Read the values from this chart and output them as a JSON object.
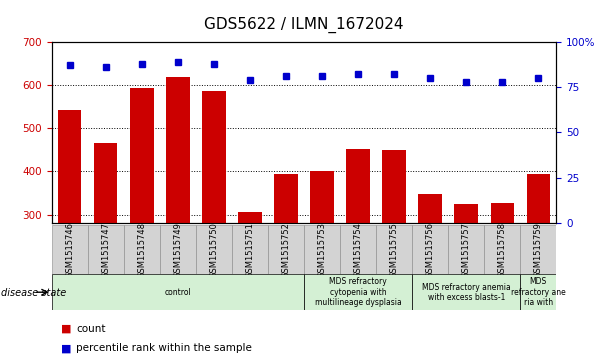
{
  "title": "GDS5622 / ILMN_1672024",
  "samples": [
    "GSM1515746",
    "GSM1515747",
    "GSM1515748",
    "GSM1515749",
    "GSM1515750",
    "GSM1515751",
    "GSM1515752",
    "GSM1515753",
    "GSM1515754",
    "GSM1515755",
    "GSM1515756",
    "GSM1515757",
    "GSM1515758",
    "GSM1515759"
  ],
  "counts": [
    543,
    466,
    592,
    618,
    585,
    307,
    393,
    400,
    452,
    450,
    348,
    325,
    328,
    393
  ],
  "percentiles": [
    87,
    86,
    88,
    89,
    88,
    79,
    81,
    81,
    82,
    82,
    80,
    78,
    78,
    80
  ],
  "ylim_left": [
    280,
    700
  ],
  "ylim_right": [
    0,
    100
  ],
  "yticks_left": [
    300,
    400,
    500,
    600,
    700
  ],
  "yticks_right": [
    0,
    25,
    50,
    75,
    100
  ],
  "bar_color": "#cc0000",
  "dot_color": "#0000cc",
  "background_color": "#ffffff",
  "grid_color": "#000000",
  "disease_groups": [
    {
      "label": "control",
      "start": 0,
      "end": 7,
      "color": "#d4f0d4"
    },
    {
      "label": "MDS refractory\ncytopenia with\nmultilineage dysplasia",
      "start": 7,
      "end": 10,
      "color": "#d4f0d4"
    },
    {
      "label": "MDS refractory anemia\nwith excess blasts-1",
      "start": 10,
      "end": 13,
      "color": "#d4f0d4"
    },
    {
      "label": "MDS\nrefractory ane\nria with",
      "start": 13,
      "end": 14,
      "color": "#d4f0d4"
    }
  ],
  "legend_count_label": "count",
  "legend_pct_label": "percentile rank within the sample",
  "disease_state_label": "disease state",
  "title_fontsize": 11,
  "tick_fontsize": 7.5,
  "sample_fontsize": 6,
  "disease_fontsize": 5.5,
  "legend_fontsize": 7.5
}
